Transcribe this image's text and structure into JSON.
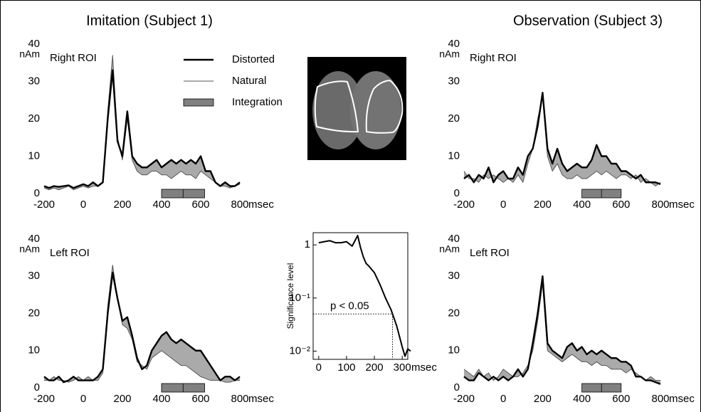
{
  "chart_data": [
    {
      "type": "line",
      "title": "Imitation (Subject 1)",
      "label": "Right ROI",
      "ylabel": "nAm",
      "xlabel": "msec",
      "x": [
        -200,
        -175,
        -150,
        -125,
        -100,
        -75,
        -50,
        -25,
        0,
        25,
        50,
        75,
        100,
        125,
        150,
        175,
        200,
        225,
        250,
        275,
        300,
        325,
        350,
        375,
        400,
        425,
        450,
        475,
        500,
        525,
        550,
        575,
        600,
        625,
        650,
        675,
        700,
        725,
        750,
        775,
        800
      ],
      "xlim": [
        -200,
        800
      ],
      "xticks": [
        -200,
        0,
        200,
        400,
        600,
        800
      ],
      "ylim": [
        0,
        40
      ],
      "yticks": [
        0,
        10,
        20,
        30,
        40
      ],
      "series": [
        {
          "name": "Distorted",
          "color": "#000000",
          "values": [
            2,
            1.5,
            2,
            1.8,
            2,
            2.2,
            1.5,
            2,
            2.5,
            2,
            3,
            2,
            3,
            20,
            33,
            14,
            10,
            22,
            10,
            8,
            7,
            7,
            8,
            9,
            7,
            8,
            9,
            8,
            9,
            8,
            9,
            8,
            10,
            6,
            6,
            3,
            2,
            3,
            2,
            2,
            3
          ]
        },
        {
          "name": "Natural",
          "color": "#555555",
          "values": [
            1.5,
            1,
            1.5,
            1,
            1.5,
            2,
            1,
            1.5,
            2,
            1.5,
            2,
            2,
            3,
            22,
            37,
            15,
            9,
            20,
            9,
            6,
            5,
            5,
            6,
            6,
            5,
            5,
            4,
            5,
            6,
            5,
            5,
            4,
            6,
            5,
            4,
            3,
            2,
            2,
            1.5,
            2,
            2.5
          ]
        }
      ],
      "integration": {
        "name": "Integration",
        "color": "#808080",
        "range": [
          400,
          620
        ]
      }
    },
    {
      "type": "line",
      "label": "Left ROI",
      "ylabel": "nAm",
      "xlabel": "msec",
      "x": [
        -200,
        -175,
        -150,
        -125,
        -100,
        -75,
        -50,
        -25,
        0,
        25,
        50,
        75,
        100,
        125,
        150,
        175,
        200,
        225,
        250,
        275,
        300,
        325,
        350,
        375,
        400,
        425,
        450,
        475,
        500,
        525,
        550,
        575,
        600,
        625,
        650,
        675,
        700,
        725,
        750,
        775,
        800
      ],
      "xlim": [
        -200,
        800
      ],
      "xticks": [
        -200,
        0,
        200,
        400,
        600,
        800
      ],
      "ylim": [
        0,
        40
      ],
      "yticks": [
        0,
        10,
        20,
        30,
        40
      ],
      "series": [
        {
          "color": "#000000",
          "values": [
            3,
            2,
            2,
            3,
            1.5,
            2,
            3,
            2,
            2,
            2,
            2,
            3,
            5,
            20,
            31,
            24,
            18,
            19,
            14,
            8,
            5,
            6,
            10,
            12,
            14,
            15,
            13,
            12,
            13,
            12,
            11,
            10,
            10,
            8,
            6,
            4,
            2,
            3,
            3,
            2,
            3
          ]
        },
        {
          "color": "#555555",
          "values": [
            2,
            2,
            3,
            2,
            2,
            1.5,
            2,
            3,
            2,
            3,
            2,
            2,
            4,
            22,
            33,
            24,
            17,
            16,
            13,
            7,
            6,
            5,
            8,
            9,
            10,
            9,
            8,
            7,
            6,
            6,
            5,
            4,
            3,
            2.5,
            2,
            2,
            2,
            1.5,
            1.5,
            2,
            2
          ]
        }
      ],
      "integration": {
        "color": "#808080",
        "range": [
          400,
          620
        ]
      }
    },
    {
      "type": "significance",
      "ylabel": "Significance level",
      "xlabel": "msec",
      "log_y": true,
      "x": [
        0,
        20,
        40,
        60,
        80,
        100,
        120,
        140,
        150,
        160,
        170,
        180,
        200,
        220,
        240,
        260,
        280,
        300,
        310,
        320,
        330
      ],
      "values": [
        1.1,
        1.15,
        1.2,
        1.1,
        1.1,
        1.15,
        0.95,
        1.5,
        0.9,
        0.6,
        0.45,
        0.4,
        0.3,
        0.18,
        0.1,
        0.06,
        0.03,
        0.012,
        0.008,
        0.011,
        0.01
      ],
      "color": "#000000",
      "xlim": [
        -20,
        320
      ],
      "xticks": [
        0,
        100,
        200,
        300
      ],
      "ylim": [
        0.007,
        1.7
      ],
      "yticks": [
        {
          "value": 0.01,
          "label": "10⁻²"
        },
        {
          "value": 0.1,
          "label": "10⁻¹"
        },
        1
      ],
      "threshold": 0.05,
      "threshold_x": 265,
      "annotation": "p < 0.05"
    },
    {
      "type": "line",
      "title": "Observation (Subject 3)",
      "label": "Right ROI",
      "ylabel": "nAm",
      "xlabel": "msec",
      "x": [
        -200,
        -175,
        -150,
        -125,
        -100,
        -75,
        -50,
        -25,
        0,
        25,
        50,
        75,
        100,
        125,
        150,
        175,
        200,
        225,
        250,
        275,
        300,
        325,
        350,
        375,
        400,
        425,
        450,
        475,
        500,
        525,
        550,
        575,
        600,
        625,
        650,
        675,
        700,
        725,
        750,
        775,
        800
      ],
      "xlim": [
        -200,
        800
      ],
      "xticks": [
        -200,
        0,
        200,
        400,
        600,
        800
      ],
      "ylim": [
        0,
        40
      ],
      "yticks": [
        0,
        10,
        20,
        30,
        40
      ],
      "series": [
        {
          "color": "#000000",
          "values": [
            4,
            5,
            3,
            5,
            4,
            7,
            3,
            5,
            6,
            4,
            4,
            7,
            5,
            10,
            12,
            18,
            27,
            12,
            8,
            12,
            8,
            6,
            7,
            8,
            7,
            7,
            9,
            13,
            10,
            10,
            8,
            8,
            6,
            6,
            5,
            4,
            5,
            3,
            3,
            3,
            2.5
          ]
        },
        {
          "color": "#555555",
          "values": [
            6,
            4,
            4,
            3,
            5,
            4,
            5,
            4,
            3,
            4,
            3,
            5,
            3,
            8,
            12,
            20,
            26,
            10,
            6,
            8,
            5,
            4,
            4,
            5,
            4,
            4,
            5,
            6,
            5,
            6,
            5,
            4,
            5,
            5,
            4,
            5,
            3,
            4,
            3,
            2,
            3
          ]
        }
      ],
      "integration": {
        "color": "#808080",
        "range": [
          400,
          600
        ]
      }
    },
    {
      "type": "line",
      "label": "Left ROI",
      "ylabel": "nAm",
      "xlabel": "msec",
      "x": [
        -200,
        -175,
        -150,
        -125,
        -100,
        -75,
        -50,
        -25,
        0,
        25,
        50,
        75,
        100,
        125,
        150,
        175,
        200,
        225,
        250,
        275,
        300,
        325,
        350,
        375,
        400,
        425,
        450,
        475,
        500,
        525,
        550,
        575,
        600,
        625,
        650,
        675,
        700,
        725,
        750,
        775,
        800
      ],
      "xlim": [
        -200,
        800
      ],
      "xticks": [
        -200,
        0,
        200,
        400,
        600,
        800
      ],
      "ylim": [
        0,
        40
      ],
      "yticks": [
        0,
        10,
        20,
        30,
        40
      ],
      "series": [
        {
          "color": "#000000",
          "values": [
            3,
            2,
            2,
            4,
            3,
            2,
            3,
            2,
            3,
            2,
            3,
            5,
            3,
            5,
            12,
            20,
            30,
            12,
            10,
            9,
            8,
            11,
            12,
            10,
            11,
            9,
            10,
            9,
            10,
            9,
            8,
            8,
            7,
            7,
            6,
            3,
            3,
            2,
            2,
            1.5,
            1
          ]
        },
        {
          "color": "#555555",
          "values": [
            5,
            4,
            3,
            5,
            3,
            4,
            2,
            3,
            5,
            4,
            3,
            3,
            4,
            6,
            10,
            18,
            28,
            10,
            9,
            8,
            7,
            8,
            9,
            8,
            7,
            7,
            6,
            7,
            6,
            6,
            5,
            5,
            5,
            4,
            5,
            4,
            3,
            2,
            3,
            2,
            2
          ]
        }
      ],
      "integration": {
        "color": "#808080",
        "range": [
          400,
          600
        ]
      }
    }
  ]
}
